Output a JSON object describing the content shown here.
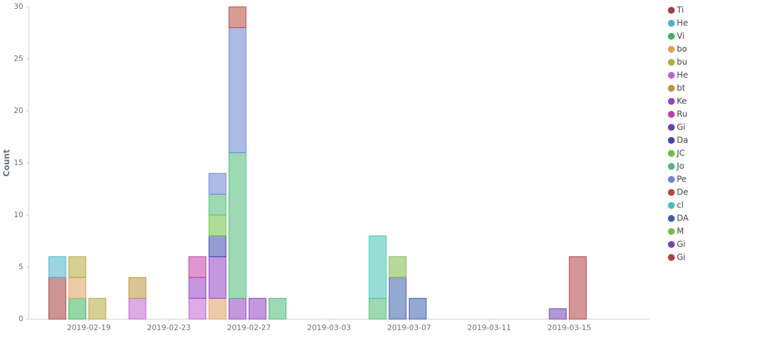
{
  "chart_data": {
    "type": "stacked_bar",
    "y_label": "Count",
    "x": [
      "2019-02-17",
      "2019-02-18",
      "2019-02-19",
      "2019-02-21",
      "2019-02-24",
      "2019-02-25",
      "2019-02-26",
      "2019-02-27",
      "2019-02-28",
      "2019-03-05",
      "2019-03-06",
      "2019-03-07",
      "2019-03-14",
      "2019-03-15"
    ],
    "xlim": [
      "2019-02-16",
      "2019-03-19"
    ],
    "xticks": [
      "2019-02-19",
      "2019-02-23",
      "2019-02-27",
      "2019-03-03",
      "2019-03-07",
      "2019-03-11",
      "2019-03-15"
    ],
    "ylim": [
      0,
      30
    ],
    "yticks": [
      0,
      5,
      10,
      15,
      20,
      25,
      30
    ],
    "legend": "right",
    "series": [
      {
        "name": "Ti",
        "color": "#a33e3e",
        "values": [
          4,
          null,
          null,
          null,
          null,
          null,
          null,
          null,
          null,
          null,
          null,
          null,
          null,
          null
        ]
      },
      {
        "name": "He",
        "color": "#4bb3c6",
        "values": [
          2,
          null,
          null,
          null,
          null,
          null,
          null,
          null,
          null,
          null,
          null,
          null,
          null,
          null
        ]
      },
      {
        "name": "Vi",
        "color": "#3db55b",
        "values": [
          null,
          2,
          null,
          null,
          null,
          null,
          null,
          null,
          null,
          null,
          null,
          null,
          null,
          null
        ]
      },
      {
        "name": "bo",
        "color": "#e0a060",
        "values": [
          null,
          2,
          null,
          null,
          null,
          2,
          null,
          null,
          null,
          null,
          null,
          null,
          null,
          null
        ]
      },
      {
        "name": "bu",
        "color": "#b5aa3e",
        "values": [
          null,
          2,
          2,
          null,
          null,
          null,
          null,
          null,
          null,
          null,
          null,
          null,
          null,
          null
        ]
      },
      {
        "name": "He",
        "color": "#c064d0",
        "values": [
          null,
          null,
          null,
          2,
          2,
          null,
          null,
          null,
          null,
          null,
          null,
          null,
          null,
          null
        ]
      },
      {
        "name": "bt",
        "color": "#b8943e",
        "values": [
          null,
          null,
          null,
          2,
          null,
          null,
          null,
          null,
          null,
          null,
          null,
          null,
          null,
          null
        ]
      },
      {
        "name": "Ke",
        "color": "#9442c2",
        "values": [
          null,
          null,
          null,
          null,
          2,
          4,
          2,
          2,
          null,
          null,
          null,
          null,
          null,
          null
        ]
      },
      {
        "name": "Ru",
        "color": "#c23eaa",
        "values": [
          null,
          null,
          null,
          null,
          2,
          null,
          null,
          null,
          null,
          null,
          null,
          null,
          null,
          null
        ]
      },
      {
        "name": "Gi",
        "color": "#6b3fb0",
        "values": [
          null,
          null,
          null,
          null,
          null,
          null,
          null,
          null,
          null,
          null,
          null,
          null,
          null,
          null
        ]
      },
      {
        "name": "Da",
        "color": "#3d4aaa",
        "values": [
          null,
          null,
          null,
          null,
          null,
          2,
          null,
          null,
          null,
          null,
          null,
          null,
          null,
          null
        ]
      },
      {
        "name": "JC",
        "color": "#6cc23e",
        "values": [
          null,
          null,
          null,
          null,
          null,
          2,
          null,
          null,
          null,
          null,
          null,
          null,
          null,
          null
        ]
      },
      {
        "name": "Jo",
        "color": "#4dbb74",
        "values": [
          null,
          null,
          null,
          null,
          null,
          2,
          14,
          null,
          2,
          2,
          null,
          null,
          null,
          null
        ]
      },
      {
        "name": "Pe",
        "color": "#6b84d4",
        "values": [
          null,
          null,
          null,
          null,
          null,
          2,
          12,
          null,
          null,
          null,
          null,
          null,
          null,
          null
        ]
      },
      {
        "name": "De",
        "color": "#b84a3e",
        "values": [
          null,
          null,
          null,
          null,
          null,
          null,
          2,
          null,
          null,
          null,
          null,
          null,
          null,
          null
        ]
      },
      {
        "name": "cl",
        "color": "#46c1b8",
        "values": [
          null,
          null,
          null,
          null,
          null,
          null,
          null,
          null,
          null,
          6,
          null,
          null,
          null,
          null
        ]
      },
      {
        "name": "DA",
        "color": "#3e5fae",
        "values": [
          null,
          null,
          null,
          null,
          null,
          null,
          null,
          null,
          null,
          null,
          4,
          2,
          null,
          null
        ]
      },
      {
        "name": "M",
        "color": "#80b84a",
        "values": [
          null,
          null,
          null,
          null,
          null,
          null,
          null,
          null,
          null,
          null,
          2,
          null,
          null,
          null
        ]
      },
      {
        "name": "Gi",
        "color": "#7045b0",
        "values": [
          null,
          null,
          null,
          null,
          null,
          null,
          null,
          null,
          null,
          null,
          null,
          null,
          1,
          null
        ]
      },
      {
        "name": "Gi",
        "color": "#b03f3f",
        "values": [
          null,
          null,
          null,
          null,
          null,
          null,
          null,
          null,
          null,
          null,
          null,
          null,
          null,
          6
        ]
      }
    ]
  }
}
